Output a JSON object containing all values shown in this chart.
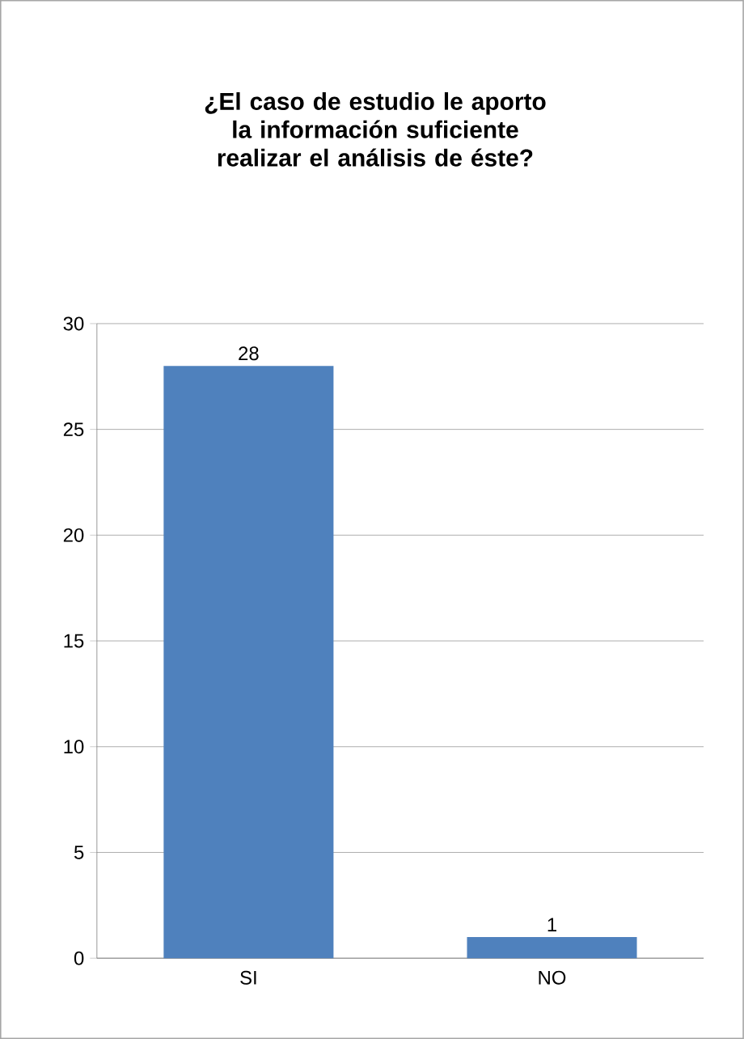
{
  "chart_data": {
    "type": "bar",
    "title": "¿El caso de estudio le aporto la información suficiente realizar el análisis de éste?",
    "categories": [
      "SI",
      "NO"
    ],
    "values": [
      28,
      1
    ],
    "color": "#4f81bd",
    "ylim": [
      0,
      30
    ],
    "yticks": [
      0,
      5,
      10,
      15,
      20,
      25,
      30
    ],
    "grid": "y",
    "data_labels": true
  }
}
